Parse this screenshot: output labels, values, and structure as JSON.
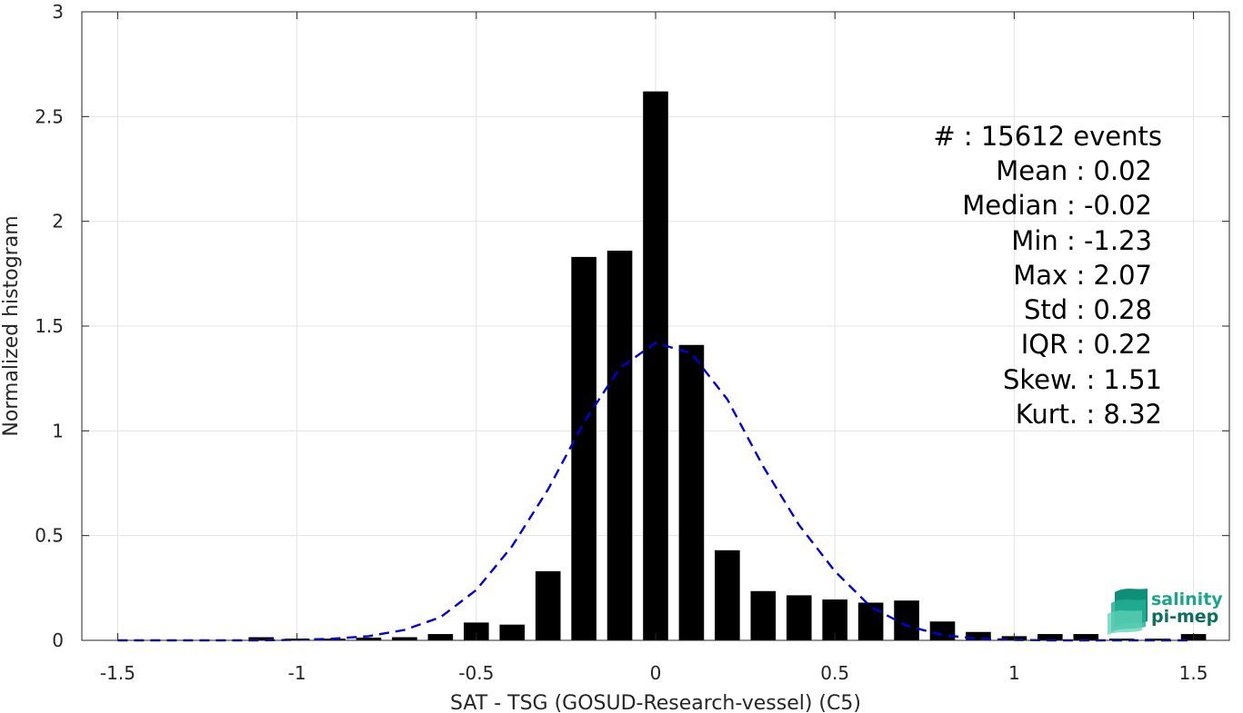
{
  "chart_data": {
    "type": "bar",
    "xlabel": "SAT - TSG (GOSUD-Research-vessel) (C5)",
    "ylabel": "Normalized histogram",
    "xlim": [
      -1.6,
      1.6
    ],
    "ylim": [
      0,
      3
    ],
    "grid": true,
    "xticks": [
      -1.5,
      -1,
      -0.5,
      0,
      0.5,
      1,
      1.5
    ],
    "xtick_labels": [
      "-1.5",
      "-1",
      "-0.5",
      "0",
      "0.5",
      "1",
      "1.5"
    ],
    "yticks": [
      0,
      0.5,
      1,
      1.5,
      2,
      2.5,
      3
    ],
    "ytick_labels": [
      "0",
      "0.5",
      "1",
      "1.5",
      "2",
      "2.5",
      "3"
    ],
    "bar_width": 0.07,
    "bars": {
      "x": [
        -1.5,
        -1.4,
        -1.3,
        -1.2,
        -1.1,
        -1.0,
        -0.9,
        -0.8,
        -0.7,
        -0.6,
        -0.5,
        -0.4,
        -0.3,
        -0.2,
        -0.1,
        0.0,
        0.1,
        0.2,
        0.3,
        0.4,
        0.5,
        0.6,
        0.7,
        0.8,
        0.9,
        1.0,
        1.1,
        1.2,
        1.3,
        1.4,
        1.5
      ],
      "values": [
        0,
        0,
        0,
        0,
        0.015,
        0.008,
        0.008,
        0.013,
        0.015,
        0.03,
        0.085,
        0.075,
        0.33,
        1.83,
        1.86,
        2.62,
        1.41,
        0.43,
        0.235,
        0.215,
        0.195,
        0.18,
        0.19,
        0.09,
        0.04,
        0.02,
        0.03,
        0.03,
        0.008,
        0.008,
        0.03
      ],
      "color": "#000000"
    },
    "fit_curve": {
      "style": "dashed",
      "color": "#0000dd",
      "x": [
        -1.5,
        -1.4,
        -1.3,
        -1.2,
        -1.1,
        -1.0,
        -0.9,
        -0.8,
        -0.7,
        -0.6,
        -0.5,
        -0.4,
        -0.3,
        -0.2,
        -0.1,
        0.0,
        0.1,
        0.2,
        0.3,
        0.4,
        0.5,
        0.6,
        0.7,
        0.8,
        0.9,
        1.0,
        1.1,
        1.2,
        1.3,
        1.4,
        1.5
      ],
      "y": [
        0,
        0,
        0,
        0,
        0,
        0.002,
        0.008,
        0.02,
        0.05,
        0.11,
        0.24,
        0.45,
        0.72,
        1.04,
        1.3,
        1.42,
        1.37,
        1.15,
        0.83,
        0.55,
        0.33,
        0.16,
        0.07,
        0.025,
        0.008,
        0.002,
        0,
        0,
        0,
        0,
        0
      ]
    }
  },
  "stats": [
    "#  : 15612 events",
    "Mean : 0.02",
    "Median : -0.02",
    "Min : -1.23",
    "Max : 2.07",
    "Std : 0.28",
    "IQR : 0.22",
    "Skew. : 1.51",
    "Kurt. : 8.32"
  ],
  "logo": {
    "line1": "salinity",
    "line2": "pi-mep",
    "color_line1": "#1aa58c",
    "color_line2": "#0d6f60"
  }
}
